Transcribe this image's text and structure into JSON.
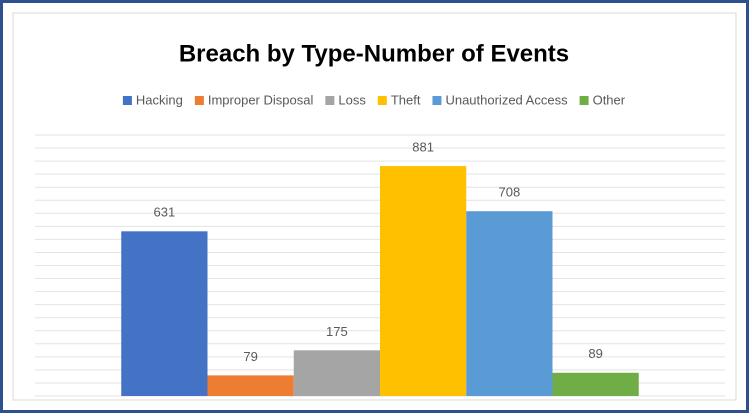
{
  "chart_data": {
    "type": "bar",
    "title": "Breach by Type-Number of Events",
    "series": [
      {
        "name": "Hacking",
        "color": "#4472c4",
        "values": [
          631
        ]
      },
      {
        "name": "Improper Disposal",
        "color": "#ed7d31",
        "values": [
          79
        ]
      },
      {
        "name": "Loss",
        "color": "#a5a5a5",
        "values": [
          175
        ]
      },
      {
        "name": "Theft",
        "color": "#ffc000",
        "values": [
          881
        ]
      },
      {
        "name": "Unauthorized Access",
        "color": "#5b9bd5",
        "values": [
          708
        ]
      },
      {
        "name": "Other",
        "color": "#70ad47",
        "values": [
          89
        ]
      }
    ],
    "ylim": [
      0,
      1000
    ],
    "yticks": [
      0,
      50,
      100,
      150,
      200,
      250,
      300,
      350,
      400,
      450,
      500,
      550,
      600,
      650,
      700,
      750,
      800,
      850,
      900,
      950,
      1000
    ],
    "grid": true,
    "legend": "top"
  }
}
